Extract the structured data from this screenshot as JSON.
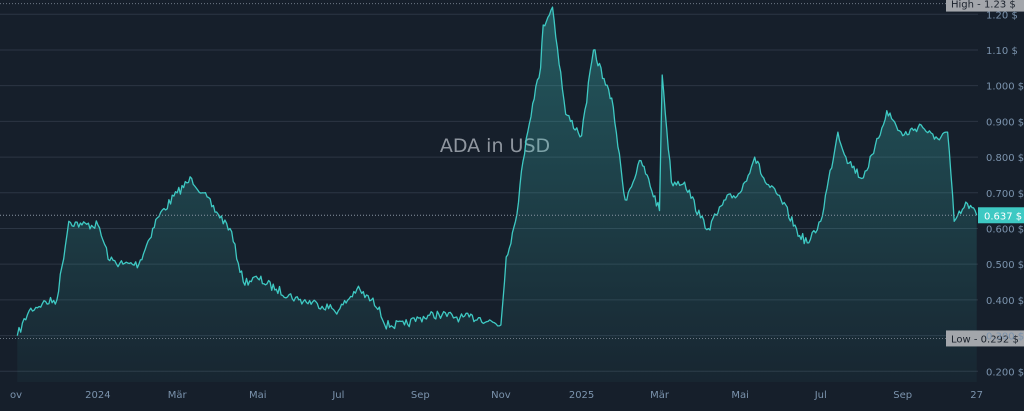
{
  "chart_data": {
    "type": "area",
    "title": "ADA in USD",
    "x_tick_labels": [
      "ov",
      "2024",
      "Mär",
      "Mai",
      "Jul",
      "Sep",
      "Nov",
      "2025",
      "Mär",
      "Mai",
      "Jul",
      "Sep",
      "27"
    ],
    "y_ticks": [
      0.2,
      0.3,
      0.4,
      0.5,
      0.6,
      0.7,
      0.8,
      0.9,
      1.0,
      1.1,
      1.2
    ],
    "y_tick_labels": [
      "0.200 $",
      "0.300 $",
      "0.400 $",
      "0.500 $",
      "0.600 $",
      "0.700 $",
      "0.800 $",
      "0.900 $",
      "1.000 $",
      "1.10 $",
      "1.20 $"
    ],
    "ylim": [
      0.17,
      1.24
    ],
    "high": {
      "label": "High",
      "value": 1.23,
      "text": "1.23 $"
    },
    "low": {
      "label": "Low",
      "value": 0.292,
      "text": "0.292 $"
    },
    "last": {
      "value": 0.637,
      "text": "0.637 $"
    },
    "grid": true,
    "colors": {
      "line": "#3ec9c3",
      "background": "#161f2b",
      "grid": "#2c3644",
      "axis_text": "#7b93ad",
      "label_box": "#a3a6ab",
      "last_box": "#3ec9c3"
    },
    "series": [
      {
        "x": [
          "2023-11-01",
          "2023-11-10",
          "2023-11-20",
          "2023-12-01",
          "2023-12-10",
          "2023-12-20",
          "2024-01-01",
          "2024-01-10",
          "2024-01-20",
          "2024-02-01",
          "2024-02-15",
          "2024-03-01",
          "2024-03-12",
          "2024-03-20",
          "2024-04-01",
          "2024-04-10",
          "2024-04-20",
          "2024-05-01",
          "2024-05-15",
          "2024-06-01",
          "2024-06-15",
          "2024-07-01",
          "2024-07-15",
          "2024-08-01",
          "2024-08-05",
          "2024-08-20",
          "2024-09-01",
          "2024-09-15",
          "2024-10-01",
          "2024-10-15",
          "2024-11-01",
          "2024-11-05",
          "2024-11-12",
          "2024-11-20",
          "2024-11-25",
          "2024-12-01",
          "2024-12-03",
          "2024-12-10",
          "2024-12-20",
          "2025-01-01",
          "2025-01-10",
          "2025-01-18",
          "2025-01-25",
          "2025-02-01",
          "2025-02-03",
          "2025-02-15",
          "2025-03-01",
          "2025-03-03",
          "2025-03-10",
          "2025-03-20",
          "2025-04-01",
          "2025-04-07",
          "2025-04-20",
          "2025-05-01",
          "2025-05-12",
          "2025-05-20",
          "2025-06-01",
          "2025-06-15",
          "2025-06-22",
          "2025-07-01",
          "2025-07-14",
          "2025-07-20",
          "2025-08-01",
          "2025-08-10",
          "2025-08-20",
          "2025-09-01",
          "2025-09-15",
          "2025-09-25",
          "2025-10-05",
          "2025-10-10",
          "2025-10-20",
          "2025-10-27"
        ],
        "values": [
          0.3,
          0.37,
          0.39,
          0.4,
          0.62,
          0.61,
          0.61,
          0.51,
          0.5,
          0.5,
          0.63,
          0.7,
          0.74,
          0.7,
          0.64,
          0.6,
          0.45,
          0.46,
          0.43,
          0.4,
          0.39,
          0.37,
          0.43,
          0.38,
          0.33,
          0.33,
          0.35,
          0.36,
          0.35,
          0.35,
          0.33,
          0.52,
          0.62,
          0.85,
          0.95,
          1.05,
          1.17,
          1.22,
          0.92,
          0.86,
          1.1,
          1.02,
          0.94,
          0.73,
          0.68,
          0.79,
          0.65,
          1.03,
          0.73,
          0.73,
          0.63,
          0.6,
          0.68,
          0.7,
          0.8,
          0.73,
          0.68,
          0.58,
          0.56,
          0.62,
          0.87,
          0.8,
          0.74,
          0.81,
          0.93,
          0.86,
          0.89,
          0.85,
          0.87,
          0.62,
          0.67,
          0.637
        ]
      }
    ]
  }
}
